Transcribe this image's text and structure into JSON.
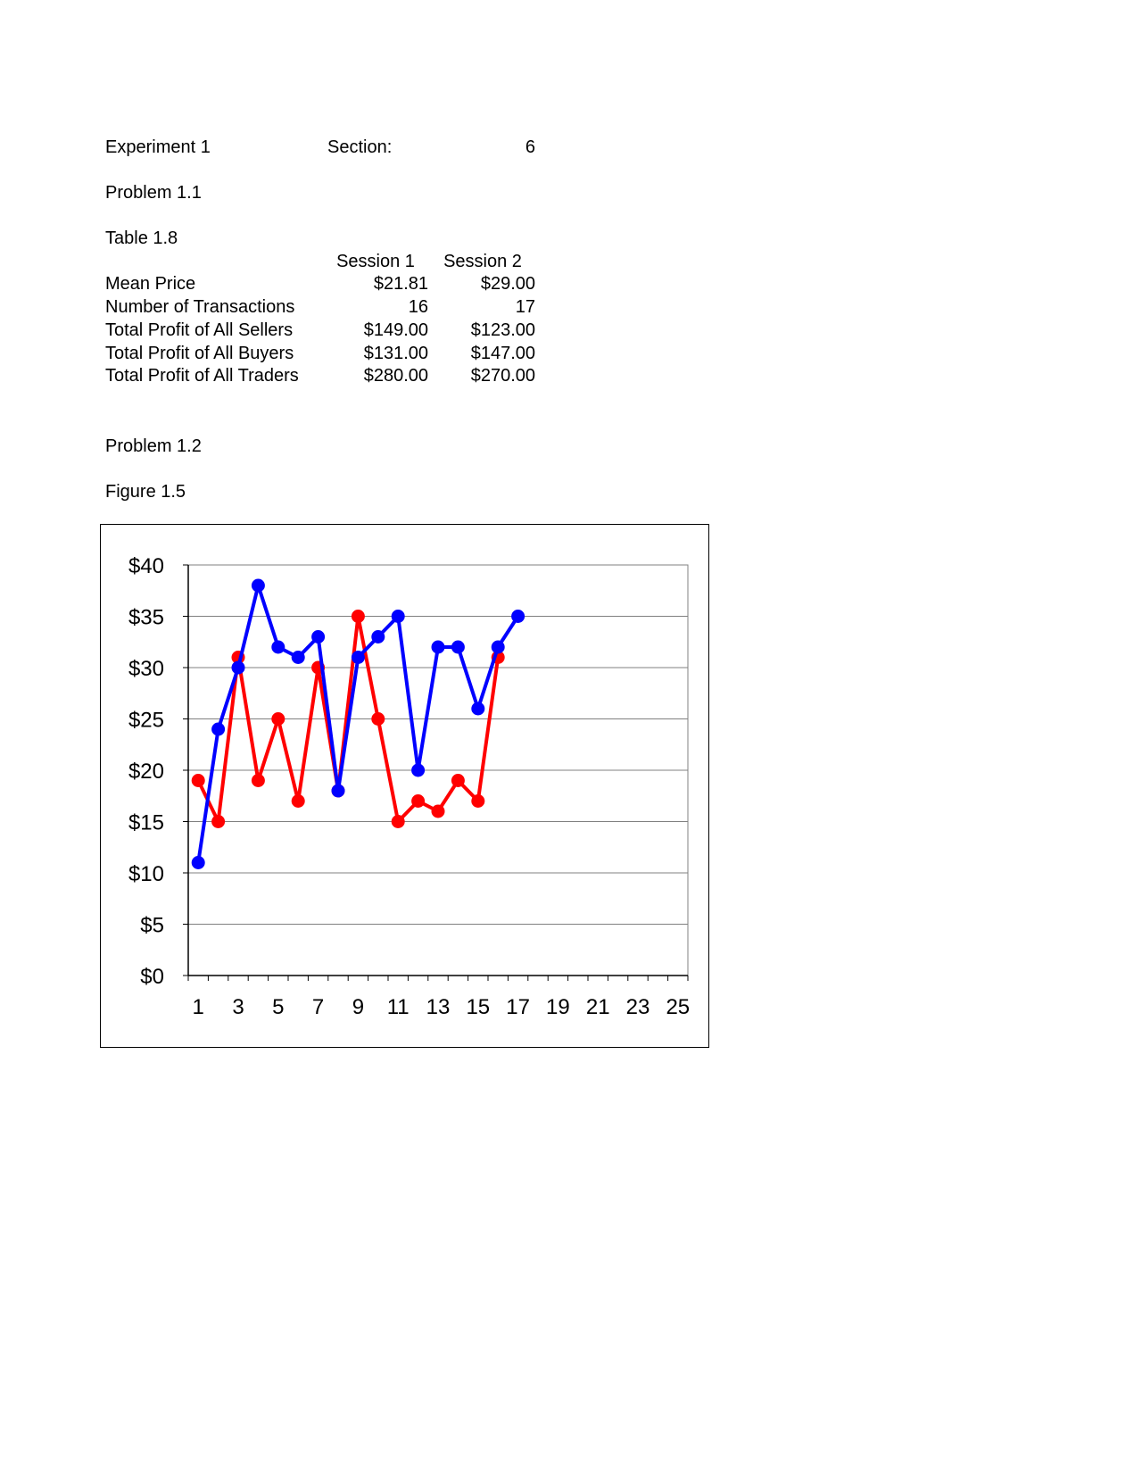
{
  "header": {
    "experiment": "Experiment 1",
    "section_label": "Section:",
    "section_value": "6"
  },
  "problem1": {
    "title": "Problem 1.1",
    "table_title": "Table 1.8",
    "columns": [
      "Session 1",
      "Session 2"
    ],
    "rows": [
      {
        "label": "Mean Price",
        "values": [
          "$21.81",
          "$29.00"
        ]
      },
      {
        "label": "Number of Transactions",
        "values": [
          "16",
          "17"
        ]
      },
      {
        "label": "Total Profit of All Sellers",
        "values": [
          "$149.00",
          "$123.00"
        ]
      },
      {
        "label": "Total Profit of All Buyers",
        "values": [
          "$131.00",
          "$147.00"
        ]
      },
      {
        "label": "Total Profit of All Traders",
        "values": [
          "$280.00",
          "$270.00"
        ]
      }
    ]
  },
  "problem2": {
    "title": "Problem 1.2",
    "figure_title": "Figure 1.5"
  },
  "chart_data": {
    "type": "line",
    "title": "",
    "xlabel": "",
    "ylabel": "",
    "xlim": [
      1,
      25
    ],
    "ylim": [
      0,
      40
    ],
    "y_ticks": [
      "$0",
      "$5",
      "$10",
      "$15",
      "$20",
      "$25",
      "$30",
      "$35",
      "$40"
    ],
    "x_ticks": [
      "1",
      "3",
      "5",
      "7",
      "9",
      "11",
      "13",
      "15",
      "17",
      "19",
      "21",
      "23",
      "25"
    ],
    "grid": true,
    "legend": "none",
    "series": [
      {
        "color": "#ff0000",
        "x": [
          1,
          2,
          3,
          4,
          5,
          6,
          7,
          8,
          9,
          10,
          11,
          12,
          13,
          14,
          15,
          16
        ],
        "values": [
          19,
          15,
          31,
          19,
          25,
          17,
          30,
          18,
          35,
          25,
          15,
          17,
          16,
          19,
          17,
          31
        ]
      },
      {
        "color": "#0000ff",
        "x": [
          1,
          2,
          3,
          4,
          5,
          6,
          7,
          8,
          9,
          10,
          11,
          12,
          13,
          14,
          15,
          16,
          17
        ],
        "values": [
          11,
          24,
          30,
          38,
          32,
          31,
          33,
          18,
          31,
          33,
          35,
          20,
          32,
          32,
          26,
          32,
          35
        ]
      }
    ]
  }
}
